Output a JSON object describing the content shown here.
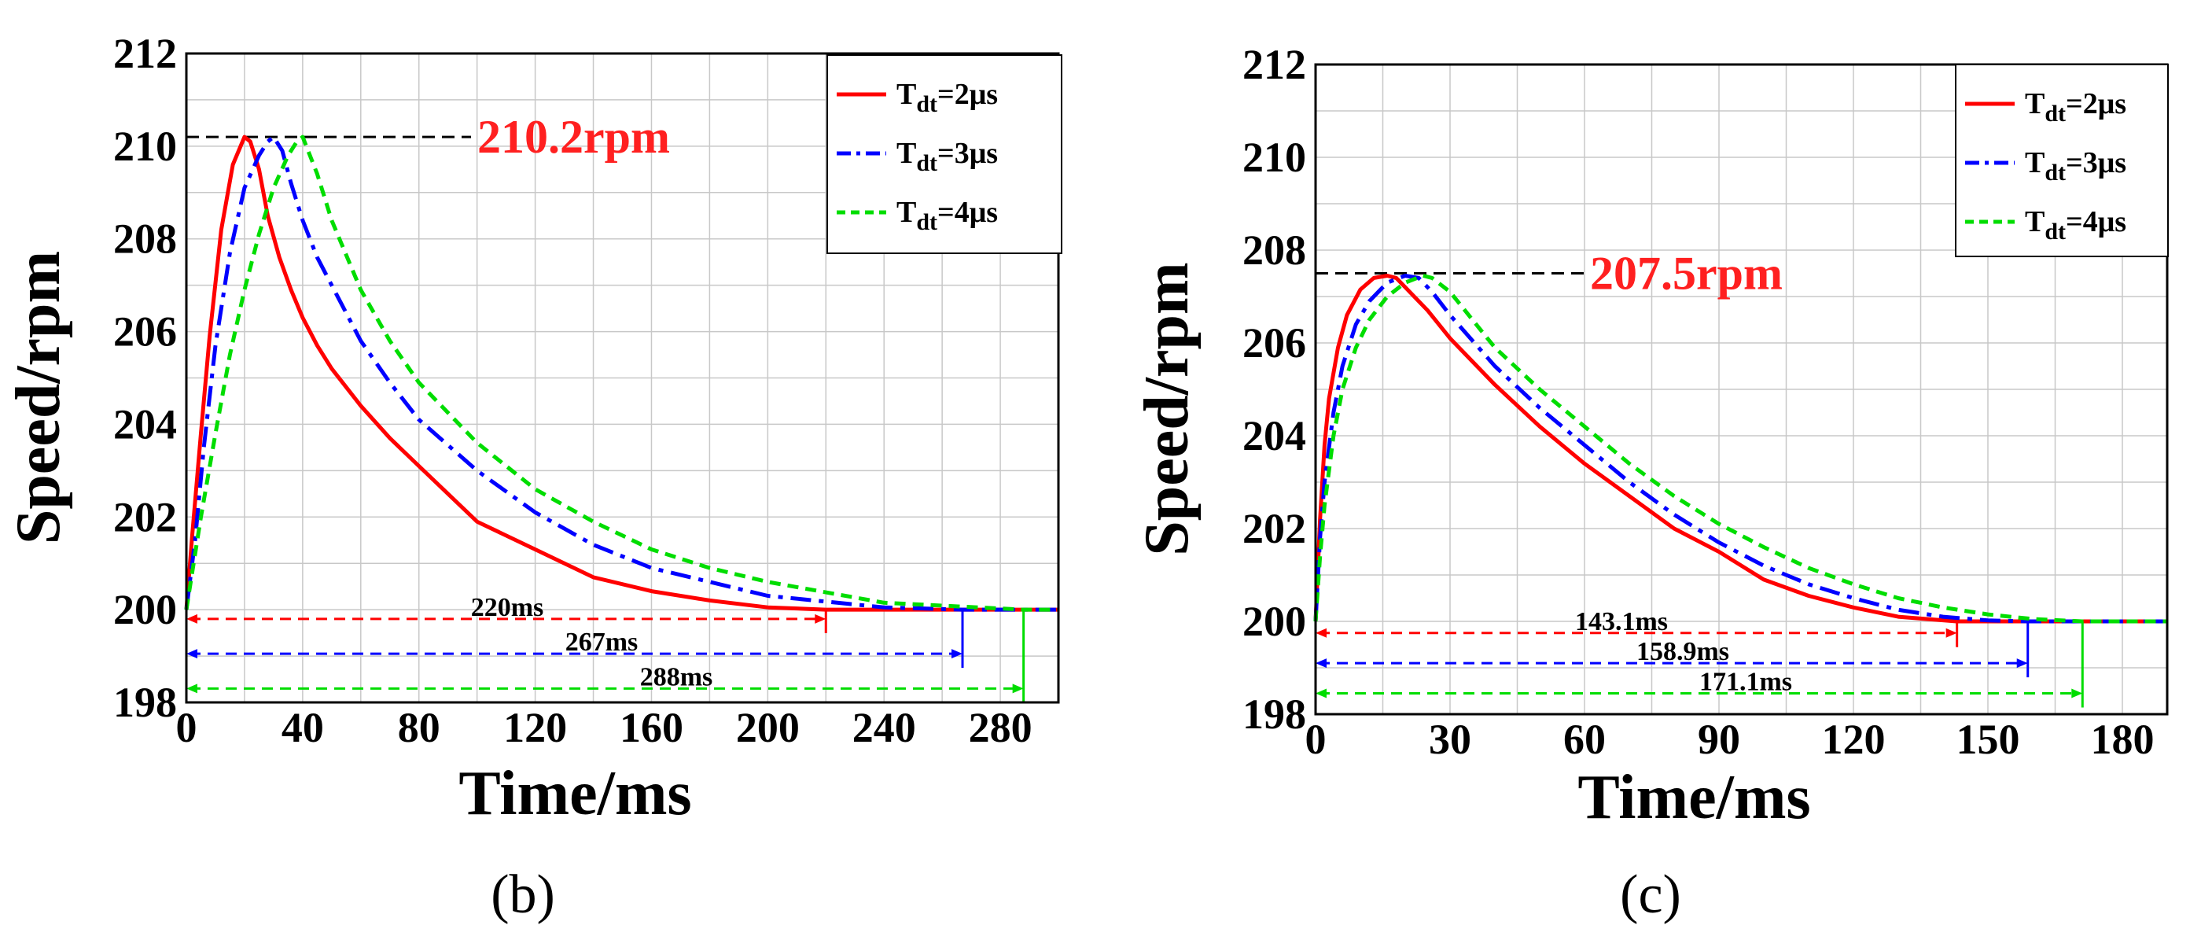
{
  "chart_data": [
    {
      "type": "line",
      "panel_label": "(b)",
      "xlabel": "Time/ms",
      "ylabel": "Speed/rpm",
      "xlim": [
        0,
        300
      ],
      "ylim": [
        198,
        212
      ],
      "xticks": [
        0,
        40,
        80,
        120,
        160,
        200,
        240,
        280
      ],
      "xtick_labels": [
        "0",
        "40",
        "80",
        "120",
        "160",
        "200",
        "240",
        "280"
      ],
      "yticks": [
        198,
        200,
        202,
        204,
        206,
        208,
        210,
        212
      ],
      "ytick_labels": [
        "198",
        "200",
        "202",
        "204",
        "206",
        "208",
        "210",
        "212"
      ],
      "grid": true,
      "legend_position": "top-right",
      "series": [
        {
          "name": "T_dt=2μs",
          "label_main": "T",
          "label_sub": "dt",
          "label_rest": "=2μs",
          "color": "#ff0000",
          "dash": "solid",
          "x": [
            0,
            2,
            5,
            8,
            12,
            16,
            20,
            22,
            25,
            28,
            32,
            36,
            40,
            45,
            50,
            60,
            70,
            80,
            100,
            120,
            140,
            160,
            180,
            200,
            220,
            260,
            300
          ],
          "y": [
            200,
            201.6,
            203.8,
            205.9,
            208.2,
            209.6,
            210.2,
            210.1,
            209.5,
            208.5,
            207.6,
            206.9,
            206.3,
            205.7,
            205.2,
            204.4,
            203.7,
            203.1,
            201.9,
            201.3,
            200.7,
            200.4,
            200.2,
            200.05,
            200,
            200,
            200
          ]
        },
        {
          "name": "T_dt=3μs",
          "label_main": "T",
          "label_sub": "dt",
          "label_rest": "=3μs",
          "color": "#0000ff",
          "dash": "dashdot",
          "x": [
            0,
            3,
            6,
            10,
            15,
            20,
            25,
            28,
            30,
            33,
            36,
            40,
            45,
            50,
            60,
            70,
            80,
            100,
            120,
            140,
            160,
            180,
            200,
            240,
            267,
            300
          ],
          "y": [
            200,
            201.5,
            203.5,
            205.7,
            207.7,
            209.1,
            209.8,
            210.1,
            210.2,
            209.9,
            209.2,
            208.4,
            207.6,
            207,
            205.8,
            204.9,
            204.1,
            203,
            202.1,
            201.4,
            200.9,
            200.6,
            200.3,
            200.05,
            200,
            200
          ]
        },
        {
          "name": "T_dt=4μs",
          "label_main": "T",
          "label_sub": "dt",
          "label_rest": "=4μs",
          "color": "#00dd00",
          "dash": "dashed",
          "x": [
            0,
            5,
            10,
            15,
            20,
            25,
            30,
            35,
            38,
            40,
            45,
            50,
            60,
            70,
            80,
            100,
            120,
            140,
            160,
            180,
            200,
            240,
            288,
            300
          ],
          "y": [
            200,
            202,
            203.8,
            205.5,
            206.9,
            208.1,
            209.1,
            209.8,
            210.1,
            210.2,
            209.4,
            208.4,
            206.9,
            205.8,
            204.9,
            203.6,
            202.6,
            201.9,
            201.3,
            200.9,
            200.6,
            200.15,
            200,
            200
          ]
        }
      ],
      "peak_annotation": {
        "text": "210.2rpm",
        "value": 210.2
      },
      "durations": [
        {
          "text": "220ms",
          "value": 220,
          "y": 199.8,
          "color": "#ff0000"
        },
        {
          "text": "267ms",
          "value": 267,
          "y": 199.05,
          "color": "#0000ff"
        },
        {
          "text": "288ms",
          "value": 288,
          "y": 198.3,
          "color": "#00dd00"
        }
      ]
    },
    {
      "type": "line",
      "panel_label": "(c)",
      "xlabel": "Time/ms",
      "ylabel": "Speed/rpm",
      "xlim": [
        0,
        190
      ],
      "ylim": [
        198,
        212
      ],
      "xticks": [
        0,
        30,
        60,
        90,
        120,
        150,
        180
      ],
      "xtick_labels": [
        "0",
        "30",
        "60",
        "90",
        "120",
        "150",
        "180"
      ],
      "yticks": [
        198,
        200,
        202,
        204,
        206,
        208,
        210,
        212
      ],
      "ytick_labels": [
        "198",
        "200",
        "202",
        "204",
        "206",
        "208",
        "210",
        "212"
      ],
      "grid": true,
      "legend_position": "top-right",
      "series": [
        {
          "name": "T_dt=2μs",
          "label_main": "T",
          "label_sub": "dt",
          "label_rest": "=2μs",
          "color": "#ff0000",
          "dash": "solid",
          "x": [
            0,
            1,
            2,
            3,
            5,
            7,
            10,
            13,
            16,
            18,
            20,
            25,
            30,
            40,
            50,
            60,
            70,
            80,
            90,
            100,
            110,
            120,
            130,
            143,
            160,
            190
          ],
          "y": [
            200,
            202.2,
            203.8,
            204.8,
            205.9,
            206.6,
            207.15,
            207.4,
            207.45,
            207.4,
            207.2,
            206.7,
            206.1,
            205.1,
            204.2,
            203.4,
            202.7,
            202,
            201.5,
            200.9,
            200.55,
            200.3,
            200.1,
            200,
            200,
            200
          ]
        },
        {
          "name": "T_dt=3μs",
          "label_main": "T",
          "label_sub": "dt",
          "label_rest": "=3μs",
          "color": "#0000ff",
          "dash": "dashdot",
          "x": [
            0,
            1,
            2,
            4,
            6,
            9,
            12,
            16,
            20,
            23,
            26,
            30,
            40,
            50,
            60,
            70,
            80,
            90,
            100,
            110,
            120,
            130,
            140,
            150,
            159,
            190
          ],
          "y": [
            200,
            201.8,
            203,
            204.5,
            205.5,
            206.4,
            206.9,
            207.3,
            207.45,
            207.4,
            207.1,
            206.6,
            205.5,
            204.6,
            203.8,
            203,
            202.3,
            201.7,
            201.2,
            200.8,
            200.5,
            200.25,
            200.1,
            200.02,
            200,
            200
          ]
        },
        {
          "name": "T_dt=4μs",
          "label_main": "T",
          "label_sub": "dt",
          "label_rest": "=4μs",
          "color": "#00dd00",
          "dash": "dashed",
          "x": [
            0,
            1,
            2,
            4,
            6,
            9,
            12,
            16,
            20,
            24,
            26,
            30,
            35,
            40,
            50,
            60,
            70,
            80,
            90,
            100,
            110,
            120,
            130,
            140,
            150,
            160,
            171,
            190
          ],
          "y": [
            200,
            201.4,
            202.5,
            204,
            205,
            205.9,
            206.5,
            207,
            207.3,
            207.45,
            207.4,
            207.1,
            206.5,
            205.9,
            205,
            204.2,
            203.4,
            202.7,
            202.1,
            201.6,
            201.15,
            200.8,
            200.5,
            200.3,
            200.15,
            200.05,
            200,
            200
          ]
        }
      ],
      "peak_annotation": {
        "text": "207.5rpm",
        "value": 207.5
      },
      "durations": [
        {
          "text": "143.1ms",
          "value": 143.1,
          "y": 199.75,
          "color": "#ff0000"
        },
        {
          "text": "158.9ms",
          "value": 158.9,
          "y": 199.1,
          "color": "#0000ff"
        },
        {
          "text": "171.1ms",
          "value": 171.1,
          "y": 198.45,
          "color": "#00dd00"
        }
      ]
    }
  ]
}
